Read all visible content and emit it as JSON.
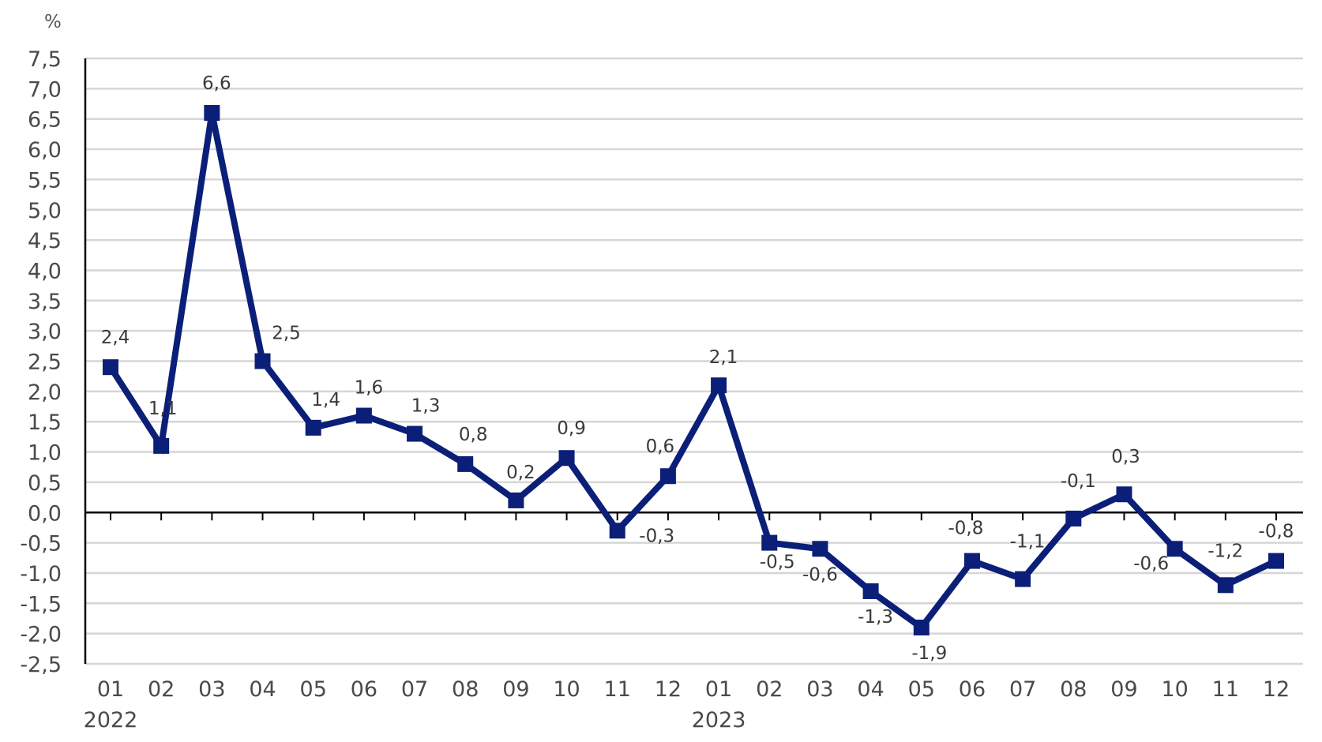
{
  "chart_data": {
    "type": "line",
    "title": "",
    "xlabel": "",
    "ylabel": "%",
    "ylim": [
      -2.5,
      7.5
    ],
    "ytick_step": 0.5,
    "grid": true,
    "legend": "none",
    "categories": [
      "01",
      "02",
      "03",
      "04",
      "05",
      "06",
      "07",
      "08",
      "09",
      "10",
      "11",
      "12",
      "01",
      "02",
      "03",
      "04",
      "05",
      "06",
      "07",
      "08",
      "09",
      "10",
      "11",
      "12"
    ],
    "year_labels": [
      {
        "index": 0,
        "label": "2022"
      },
      {
        "index": 12,
        "label": "2023"
      }
    ],
    "series": [
      {
        "values": [
          2.4,
          1.1,
          6.6,
          2.5,
          1.4,
          1.6,
          1.3,
          0.8,
          0.2,
          0.9,
          -0.3,
          0.6,
          2.1,
          -0.5,
          -0.6,
          -1.3,
          -1.9,
          -0.8,
          -1.1,
          -0.1,
          0.3,
          -0.6,
          -1.2,
          -0.8
        ],
        "labels": [
          "2,4",
          "1,1",
          "6,6",
          "2,5",
          "1,4",
          "1,6",
          "1,3",
          "0,8",
          "0,2",
          "0,9",
          "-0,3",
          "0,6",
          "2,1",
          "-0,5",
          "-0,6",
          "-1,3",
          "-1,9",
          "-0,8",
          "-1,1",
          "-0,1",
          "0,3",
          "-0,6",
          "-1,2",
          "-0,8"
        ],
        "color": "#0b1f78"
      }
    ]
  }
}
